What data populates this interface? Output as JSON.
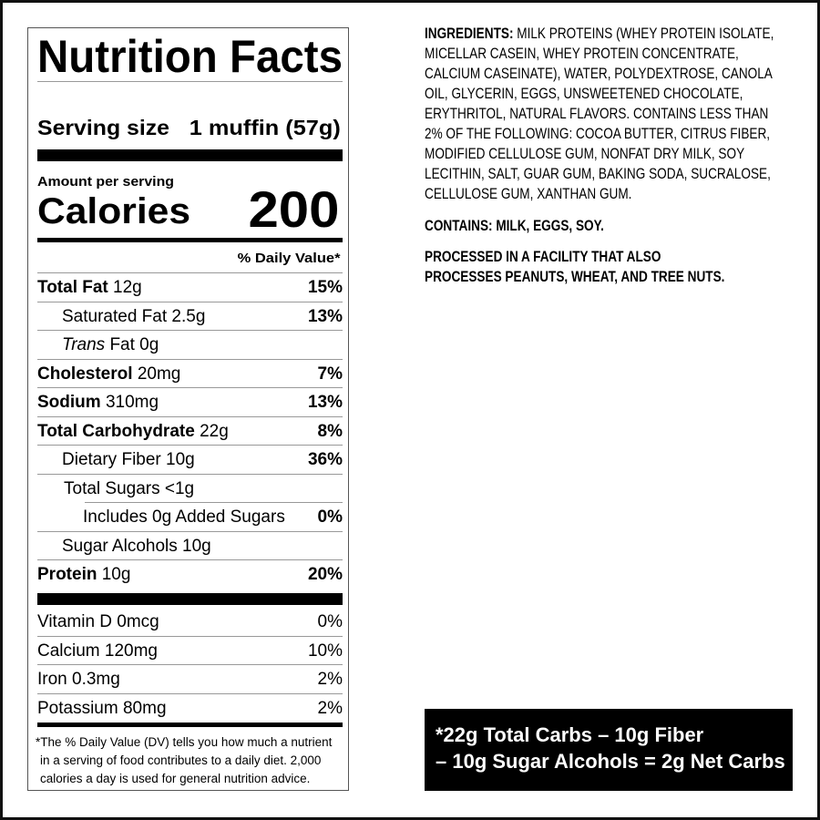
{
  "label": {
    "title": "Nutrition Facts",
    "serving_size_label": "Serving size",
    "serving_size_value": "1 muffin (57g)",
    "amount_per_serving": "Amount per serving",
    "calories_label": "Calories",
    "calories_value": "200",
    "daily_value_header": "% Daily Value*",
    "nutrients": [
      {
        "name": "Total Fat",
        "amount": "12g",
        "dv": "15%"
      },
      {
        "name": "Saturated Fat 2.5g",
        "dv": "13%"
      },
      {
        "name_italic": "Trans",
        "name": "Fat 0g"
      },
      {
        "name": "Cholesterol",
        "amount": "20mg",
        "dv": "7%"
      },
      {
        "name": "Sodium",
        "amount": "310mg",
        "dv": "13%"
      },
      {
        "name": "Total Carbohydrate",
        "amount": "22g",
        "dv": "8%"
      },
      {
        "name": "Dietary Fiber 10g",
        "dv": "36%"
      },
      {
        "name": "Total Sugars <1g"
      },
      {
        "name": "Includes 0g Added Sugars",
        "dv": "0%"
      },
      {
        "name": "Sugar Alcohols 10g"
      },
      {
        "name": "Protein",
        "amount": "10g",
        "dv": "20%"
      }
    ],
    "vitamins": [
      {
        "name": "Vitamin D 0mcg",
        "dv": "0%"
      },
      {
        "name": "Calcium 120mg",
        "dv": "10%"
      },
      {
        "name": "Iron 0.3mg",
        "dv": "2%"
      },
      {
        "name": "Potassium 80mg",
        "dv": "2%"
      }
    ],
    "footnote": [
      "*The % Daily Value (DV) tells you how much a nutrient",
      "in a serving of food contributes to a daily diet. 2,000",
      "calories a day is used for general nutrition advice."
    ]
  },
  "ingredients": {
    "heading": "INGREDIENTS:",
    "lines": [
      " MILK PROTEINS (WHEY PROTEIN ISOLATE,",
      "MICELLAR CASEIN, WHEY PROTEIN CONCENTRATE,",
      "CALCIUM CASEINATE), WATER, POLYDEXTROSE, CANOLA",
      "OIL, GLYCERIN, EGGS, UNSWEETENED CHOCOLATE,",
      "ERYTHRITOL, NATURAL FLAVORS. CONTAINS LESS THAN",
      "2% OF THE FOLLOWING: COCOA BUTTER, CITRUS FIBER,",
      "MODIFIED CELLULOSE GUM, NONFAT DRY MILK, SOY",
      "LECITHIN, SALT, GUAR GUM, BAKING SODA, SUCRALOSE,",
      "CELLULOSE GUM, XANTHAN GUM."
    ],
    "contains": "CONTAINS: MILK, EGGS, SOY.",
    "facility": [
      "PROCESSED IN A FACILITY THAT ALSO",
      "PROCESSES PEANUTS, WHEAT, AND TREE NUTS."
    ]
  },
  "net_carbs": [
    "*22g Total Carbs – 10g Fiber",
    "– 10g Sugar Alcohols = 2g Net Carbs"
  ]
}
